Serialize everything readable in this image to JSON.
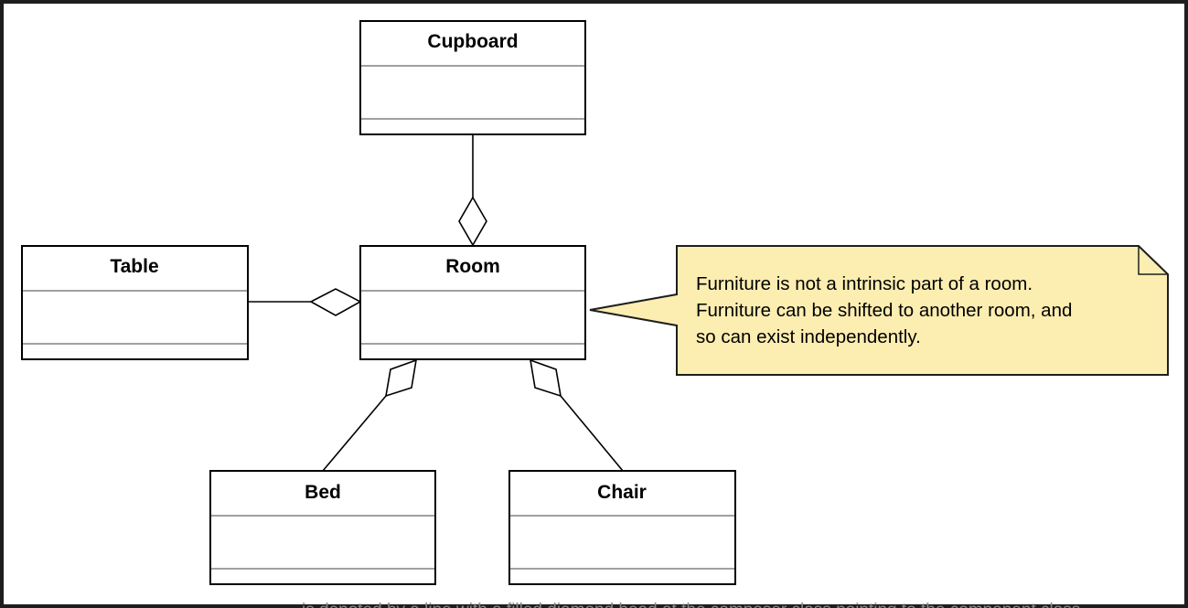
{
  "classes": [
    {
      "name": "Cupboard"
    },
    {
      "name": "Room"
    },
    {
      "name": "Table"
    },
    {
      "name": "Bed"
    },
    {
      "name": "Chair"
    }
  ],
  "note": {
    "lines": [
      "Furniture is not a intrinsic part of a room.",
      "Furniture can be shifted to another room, and",
      "so can exist independently."
    ]
  },
  "caption": "is denoted by a line with a filled diamond head at the composer class pointing to the component class."
}
